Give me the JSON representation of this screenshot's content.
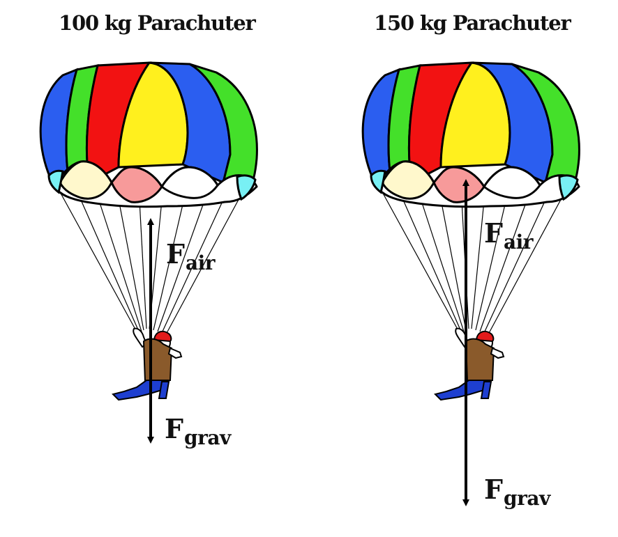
{
  "panels": [
    {
      "title": "100 kg Parachuter",
      "forces": [
        {
          "symbol": "F",
          "subscript": "air"
        },
        {
          "symbol": "F",
          "subscript": "grav"
        }
      ]
    },
    {
      "title": "150 kg Parachuter",
      "forces": [
        {
          "symbol": "F",
          "subscript": "air"
        },
        {
          "symbol": "F",
          "subscript": "grav"
        }
      ]
    }
  ],
  "colors": {
    "canopy_blue": "#2b5ef0",
    "canopy_green": "#44e02a",
    "canopy_red": "#f21212",
    "canopy_yellow": "#fff01e",
    "canopy_pink": "#f79a9a",
    "canopy_cream": "#fff8cc",
    "canopy_cyan": "#78f0f4",
    "outline": "#000000",
    "harness_brown": "#8a5a2b",
    "pants_blue": "#1e3fd0",
    "helmet_red": "#e21b1b"
  }
}
